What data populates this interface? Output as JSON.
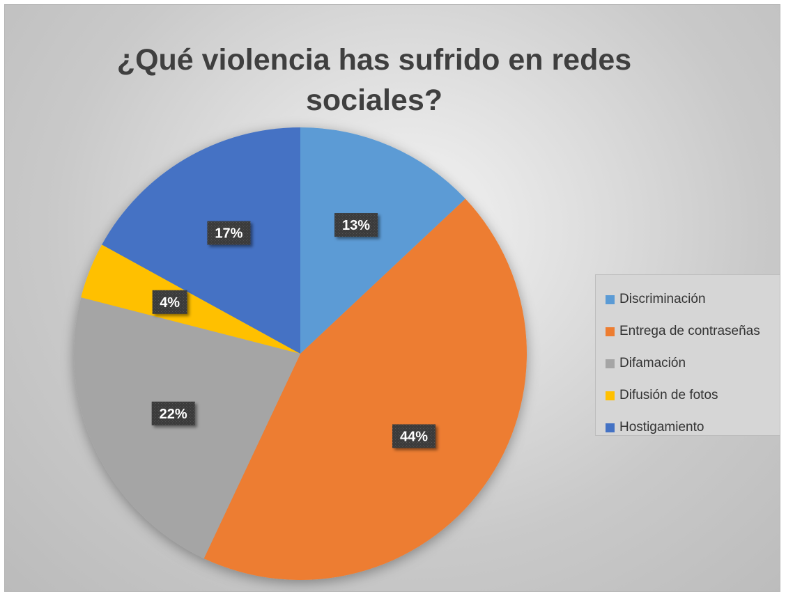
{
  "chart_data": {
    "type": "pie",
    "title_lines": [
      "¿Qué violencia has sufrido en redes",
      "sociales?"
    ],
    "slices": [
      {
        "name": "Discriminación",
        "value": 13,
        "label": "13%",
        "color": "#5B9BD5"
      },
      {
        "name": "Entrega de contraseñas",
        "value": 44,
        "label": "44%",
        "color": "#ED7D31"
      },
      {
        "name": "Difamación",
        "value": 22,
        "label": "22%",
        "color": "#A5A5A5"
      },
      {
        "name": "Difusión de fotos",
        "value": 4,
        "label": "4%",
        "color": "#FFC000"
      },
      {
        "name": "Hostigamiento",
        "value": 17,
        "label": "17%",
        "color": "#4472C4"
      }
    ],
    "legend_position": "right",
    "start_angle": "12 o'clock",
    "direction": "clockwise"
  }
}
